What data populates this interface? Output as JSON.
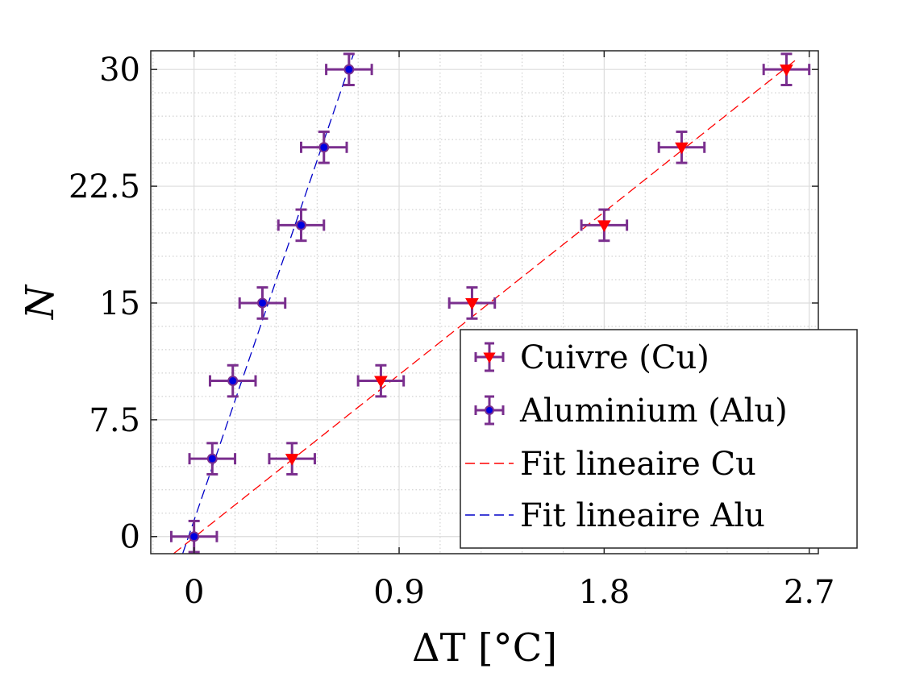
{
  "chart_data": {
    "type": "scatter",
    "xlabel": "ΔT [°C]",
    "ylabel": "N",
    "xlim": [
      -0.19,
      2.74
    ],
    "ylim": [
      -1.1,
      31.2
    ],
    "x_ticks": [
      {
        "value": 0,
        "label": "0"
      },
      {
        "value": 0.9,
        "label": "0.9"
      },
      {
        "value": 1.8,
        "label": "1.8"
      },
      {
        "value": 2.7,
        "label": "2.7"
      }
    ],
    "y_ticks": [
      {
        "value": 0,
        "label": "0"
      },
      {
        "value": 7.5,
        "label": "7.5"
      },
      {
        "value": 15,
        "label": "15"
      },
      {
        "value": 22.5,
        "label": "22.5"
      },
      {
        "value": 30,
        "label": "30"
      }
    ],
    "grid": true,
    "minor_grid": true,
    "legend_position": "lower-right",
    "series": [
      {
        "name": "Cuivre (Cu)",
        "kind": "points",
        "marker": "triangle-down",
        "color": "#ff0000",
        "errorbar_color": "#7a2f8e",
        "x": [
          0.43,
          0.82,
          1.22,
          1.8,
          2.14,
          2.6
        ],
        "y": [
          5,
          10,
          15,
          20,
          25,
          30
        ],
        "x_err": 0.1,
        "y_err": 1
      },
      {
        "name": "Aluminium (Alu)",
        "kind": "points",
        "marker": "circle",
        "color": "#0000e0",
        "errorbar_color": "#7a2f8e",
        "x": [
          0.0,
          0.08,
          0.17,
          0.3,
          0.47,
          0.57,
          0.68
        ],
        "y": [
          0,
          5,
          10,
          15,
          20,
          25,
          30
        ],
        "x_err": 0.1,
        "y_err": 1
      },
      {
        "name": "Fit lineaire Cu",
        "kind": "line",
        "dash": "dashed",
        "color": "#ff0000",
        "x": [
          -0.09,
          2.64
        ],
        "y": [
          -1.1,
          30.6
        ]
      },
      {
        "name": "Fit lineaire Alu",
        "kind": "line",
        "dash": "dashed",
        "color": "#0000c8",
        "x": [
          -0.05,
          0.7
        ],
        "y": [
          -1.1,
          31
        ]
      }
    ]
  }
}
